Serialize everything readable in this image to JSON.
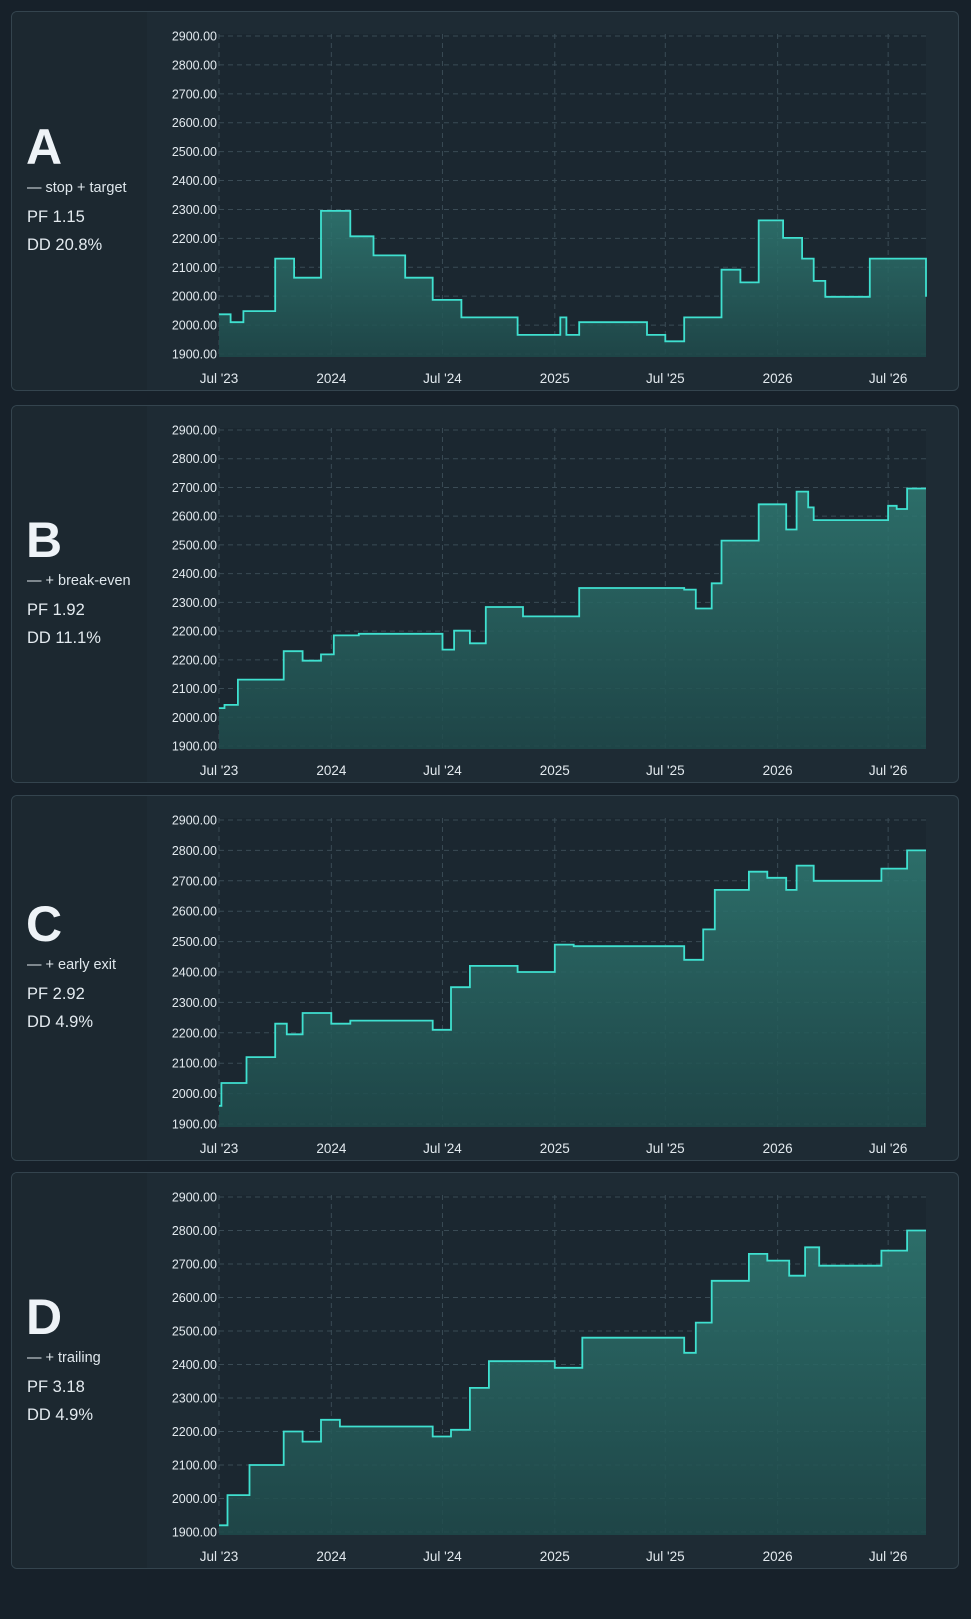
{
  "chart_data": [
    {
      "type": "area",
      "label": "A",
      "description": "— stop + target",
      "pf": "PF 1.15",
      "dd": "DD 20.8%",
      "y_ticks": [
        "2900.00",
        "2800.00",
        "2700.00",
        "2600.00",
        "2500.00",
        "2400.00",
        "2300.00",
        "2200.00",
        "2100.00",
        "2000.00",
        "2000.00",
        "1900.00"
      ],
      "x_ticks": [
        "Jul '23",
        "2024",
        "Jul '24",
        "2025",
        "Jul '25",
        "2026",
        "Jul '26"
      ],
      "x": [
        "2023-07-01",
        "2023-07-20",
        "2023-08-10",
        "2023-10-01",
        "2023-11-01",
        "2023-12-15",
        "2024-02-01",
        "2024-03-10",
        "2024-05-01",
        "2024-06-15",
        "2024-08-01",
        "2024-11-01",
        "2025-01-01",
        "2025-01-10",
        "2025-01-20",
        "2025-02-10",
        "2025-05-15",
        "2025-06-01",
        "2025-07-01",
        "2025-08-01",
        "2025-10-01",
        "2025-11-01",
        "2025-12-01",
        "2026-01-10",
        "2026-02-10",
        "2026-03-01",
        "2026-03-20",
        "2026-06-01",
        "2026-07-01",
        "2026-08-01",
        "2026-09-01"
      ],
      "y": [
        2025,
        2000,
        2035,
        2200,
        2140,
        2350,
        2270,
        2210,
        2140,
        2070,
        2015,
        1960,
        1960,
        2015,
        1960,
        2000,
        2000,
        1960,
        1940,
        2015,
        2165,
        2125,
        2320,
        2265,
        2200,
        2130,
        2080,
        2200,
        2200,
        2200,
        2080
      ],
      "ylim": [
        1900,
        2900
      ]
    },
    {
      "type": "area",
      "label": "B",
      "description": "— + break-even",
      "pf": "PF 1.92",
      "dd": "DD 11.1%",
      "y_ticks": [
        "2900.00",
        "2800.00",
        "2700.00",
        "2600.00",
        "2500.00",
        "2400.00",
        "2300.00",
        "2200.00",
        "2200.00",
        "2100.00",
        "2000.00",
        "1900.00"
      ],
      "x_ticks": [
        "Jul '23",
        "2024",
        "Jul '24",
        "2025",
        "Jul '25",
        "2026",
        "Jul '26"
      ],
      "x": [
        "2023-07-01",
        "2023-07-10",
        "2023-08-01",
        "2023-10-15",
        "2023-11-15",
        "2023-12-15",
        "2024-01-05",
        "2024-02-15",
        "2024-07-01",
        "2024-07-20",
        "2024-08-15",
        "2024-09-10",
        "2024-11-10",
        "2025-01-01",
        "2025-02-10",
        "2025-08-01",
        "2025-08-20",
        "2025-09-15",
        "2025-10-01",
        "2025-12-01",
        "2026-01-15",
        "2026-02-01",
        "2026-02-20",
        "2026-03-01",
        "2026-04-01",
        "2026-06-01",
        "2026-07-01",
        "2026-07-15",
        "2026-08-01",
        "2026-09-01"
      ],
      "y": [
        2020,
        2030,
        2110,
        2200,
        2170,
        2190,
        2250,
        2255,
        2205,
        2265,
        2225,
        2340,
        2310,
        2310,
        2400,
        2395,
        2335,
        2415,
        2550,
        2665,
        2585,
        2705,
        2655,
        2615,
        2615,
        2615,
        2660,
        2650,
        2715,
        2715
      ],
      "ylim": [
        1900,
        2900
      ]
    },
    {
      "type": "area",
      "label": "C",
      "description": "— + early exit",
      "pf": "PF 2.92",
      "dd": "DD 4.9%",
      "y_ticks": [
        "2900.00",
        "2800.00",
        "2700.00",
        "2600.00",
        "2500.00",
        "2400.00",
        "2300.00",
        "2200.00",
        "2100.00",
        "2000.00",
        "1900.00"
      ],
      "x_ticks": [
        "Jul '23",
        "2024",
        "Jul '24",
        "2025",
        "Jul '25",
        "2026",
        "Jul '26"
      ],
      "x": [
        "2023-07-01",
        "2023-07-05",
        "2023-08-15",
        "2023-10-01",
        "2023-10-20",
        "2023-11-15",
        "2024-01-01",
        "2024-02-01",
        "2024-06-15",
        "2024-07-15",
        "2024-08-15",
        "2024-11-01",
        "2025-01-01",
        "2025-02-01",
        "2025-06-01",
        "2025-08-01",
        "2025-09-01",
        "2025-09-20",
        "2025-11-15",
        "2025-12-15",
        "2026-01-15",
        "2026-02-01",
        "2026-03-01",
        "2026-06-01",
        "2026-06-20",
        "2026-08-01",
        "2026-09-01"
      ],
      "y": [
        1960,
        2035,
        2120,
        2230,
        2195,
        2265,
        2230,
        2240,
        2210,
        2350,
        2420,
        2400,
        2490,
        2485,
        2485,
        2440,
        2540,
        2670,
        2730,
        2710,
        2670,
        2750,
        2700,
        2700,
        2740,
        2800,
        2800
      ],
      "ylim": [
        1900,
        2900
      ]
    },
    {
      "type": "area",
      "label": "D",
      "description": "— + trailing",
      "pf": "PF 3.18",
      "dd": "DD 4.9%",
      "y_ticks": [
        "2900.00",
        "2800.00",
        "2700.00",
        "2600.00",
        "2500.00",
        "2400.00",
        "2300.00",
        "2200.00",
        "2100.00",
        "2000.00",
        "1900.00"
      ],
      "x_ticks": [
        "Jul '23",
        "2024",
        "Jul '24",
        "2025",
        "Jul '25",
        "2026",
        "Jul '26"
      ],
      "x": [
        "2023-07-01",
        "2023-07-15",
        "2023-08-20",
        "2023-10-15",
        "2023-11-15",
        "2023-12-15",
        "2024-01-15",
        "2024-06-15",
        "2024-07-15",
        "2024-08-15",
        "2024-09-15",
        "2024-10-05",
        "2025-01-01",
        "2025-02-15",
        "2025-05-10",
        "2025-08-01",
        "2025-08-20",
        "2025-09-15",
        "2025-11-15",
        "2025-12-15",
        "2026-01-20",
        "2026-02-15",
        "2026-03-10",
        "2026-06-01",
        "2026-06-20",
        "2026-08-01",
        "2026-09-01"
      ],
      "y": [
        1920,
        2010,
        2100,
        2200,
        2170,
        2235,
        2215,
        2185,
        2205,
        2330,
        2410,
        2410,
        2390,
        2480,
        2480,
        2435,
        2525,
        2650,
        2730,
        2710,
        2665,
        2750,
        2695,
        2695,
        2740,
        2800,
        2800
      ],
      "ylim": [
        1900,
        2900
      ]
    }
  ]
}
